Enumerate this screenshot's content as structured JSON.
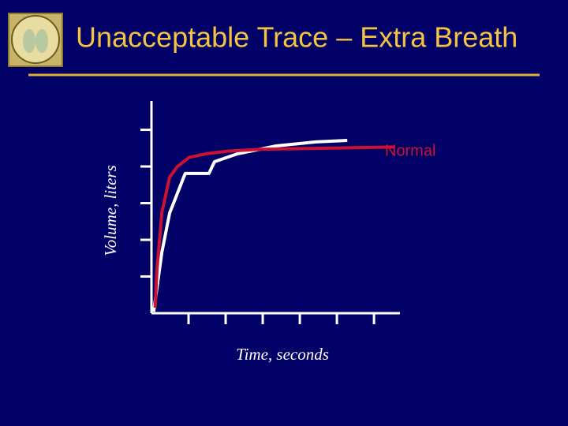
{
  "chart_data": {
    "type": "line",
    "title": "Unacceptable Trace – Extra Breath",
    "xlabel": "Time, seconds",
    "ylabel": "Volume, liters",
    "xlim": [
      0,
      6.7
    ],
    "ylim": [
      0,
      5.7
    ],
    "xticks": [
      1,
      2,
      3,
      4,
      5,
      6
    ],
    "yticks": [
      1,
      2,
      3,
      4,
      5
    ],
    "tick_labels": false,
    "grid": false,
    "axis_color": "#ffffff",
    "series": [
      {
        "name": "Normal",
        "color": "#cc1133",
        "x": [
          0.1,
          0.15,
          0.28,
          0.49,
          0.7,
          1.02,
          1.5,
          2.09,
          3.0,
          6.55
        ],
        "values": [
          0.15,
          1.2,
          2.74,
          3.71,
          4.0,
          4.25,
          4.35,
          4.42,
          4.47,
          4.53
        ]
      },
      {
        "color": "#ffffff",
        "x": [
          0.06,
          0.28,
          0.49,
          0.91,
          1.55,
          1.7,
          2.3,
          3.36,
          4.43,
          5.28
        ],
        "values": [
          0.04,
          1.66,
          2.73,
          3.81,
          3.81,
          4.13,
          4.34,
          4.56,
          4.67,
          4.71
        ]
      }
    ]
  }
}
